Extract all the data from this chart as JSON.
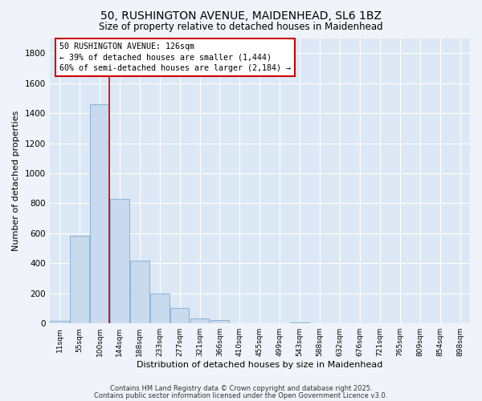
{
  "title": "50, RUSHINGTON AVENUE, MAIDENHEAD, SL6 1BZ",
  "subtitle": "Size of property relative to detached houses in Maidenhead",
  "xlabel": "Distribution of detached houses by size in Maidenhead",
  "ylabel": "Number of detached properties",
  "bar_color": "#c9d9ee",
  "bar_edge_color": "#7aadd4",
  "plot_bg_color": "#dce8f5",
  "fig_bg_color": "#f0f4fa",
  "grid_color": "#ffffff",
  "vline_color": "#cc0000",
  "box_edge_color": "#cc0000",
  "box_face_color": "#ffffff",
  "categories": [
    "11sqm",
    "55sqm",
    "100sqm",
    "144sqm",
    "188sqm",
    "233sqm",
    "277sqm",
    "321sqm",
    "366sqm",
    "410sqm",
    "455sqm",
    "499sqm",
    "543sqm",
    "588sqm",
    "632sqm",
    "676sqm",
    "721sqm",
    "765sqm",
    "809sqm",
    "854sqm",
    "898sqm"
  ],
  "values": [
    15,
    585,
    1460,
    830,
    420,
    200,
    100,
    35,
    20,
    0,
    0,
    0,
    5,
    0,
    0,
    0,
    3,
    0,
    0,
    0,
    0
  ],
  "ylim": [
    0,
    1900
  ],
  "yticks": [
    0,
    200,
    400,
    600,
    800,
    1000,
    1200,
    1400,
    1600,
    1800
  ],
  "vline_x": 2.5,
  "annotation_line1": "50 RUSHINGTON AVENUE: 126sqm",
  "annotation_line2": "← 39% of detached houses are smaller (1,444)",
  "annotation_line3": "60% of semi-detached houses are larger (2,184) →",
  "footer_line1": "Contains HM Land Registry data © Crown copyright and database right 2025.",
  "footer_line2": "Contains public sector information licensed under the Open Government Licence v3.0."
}
